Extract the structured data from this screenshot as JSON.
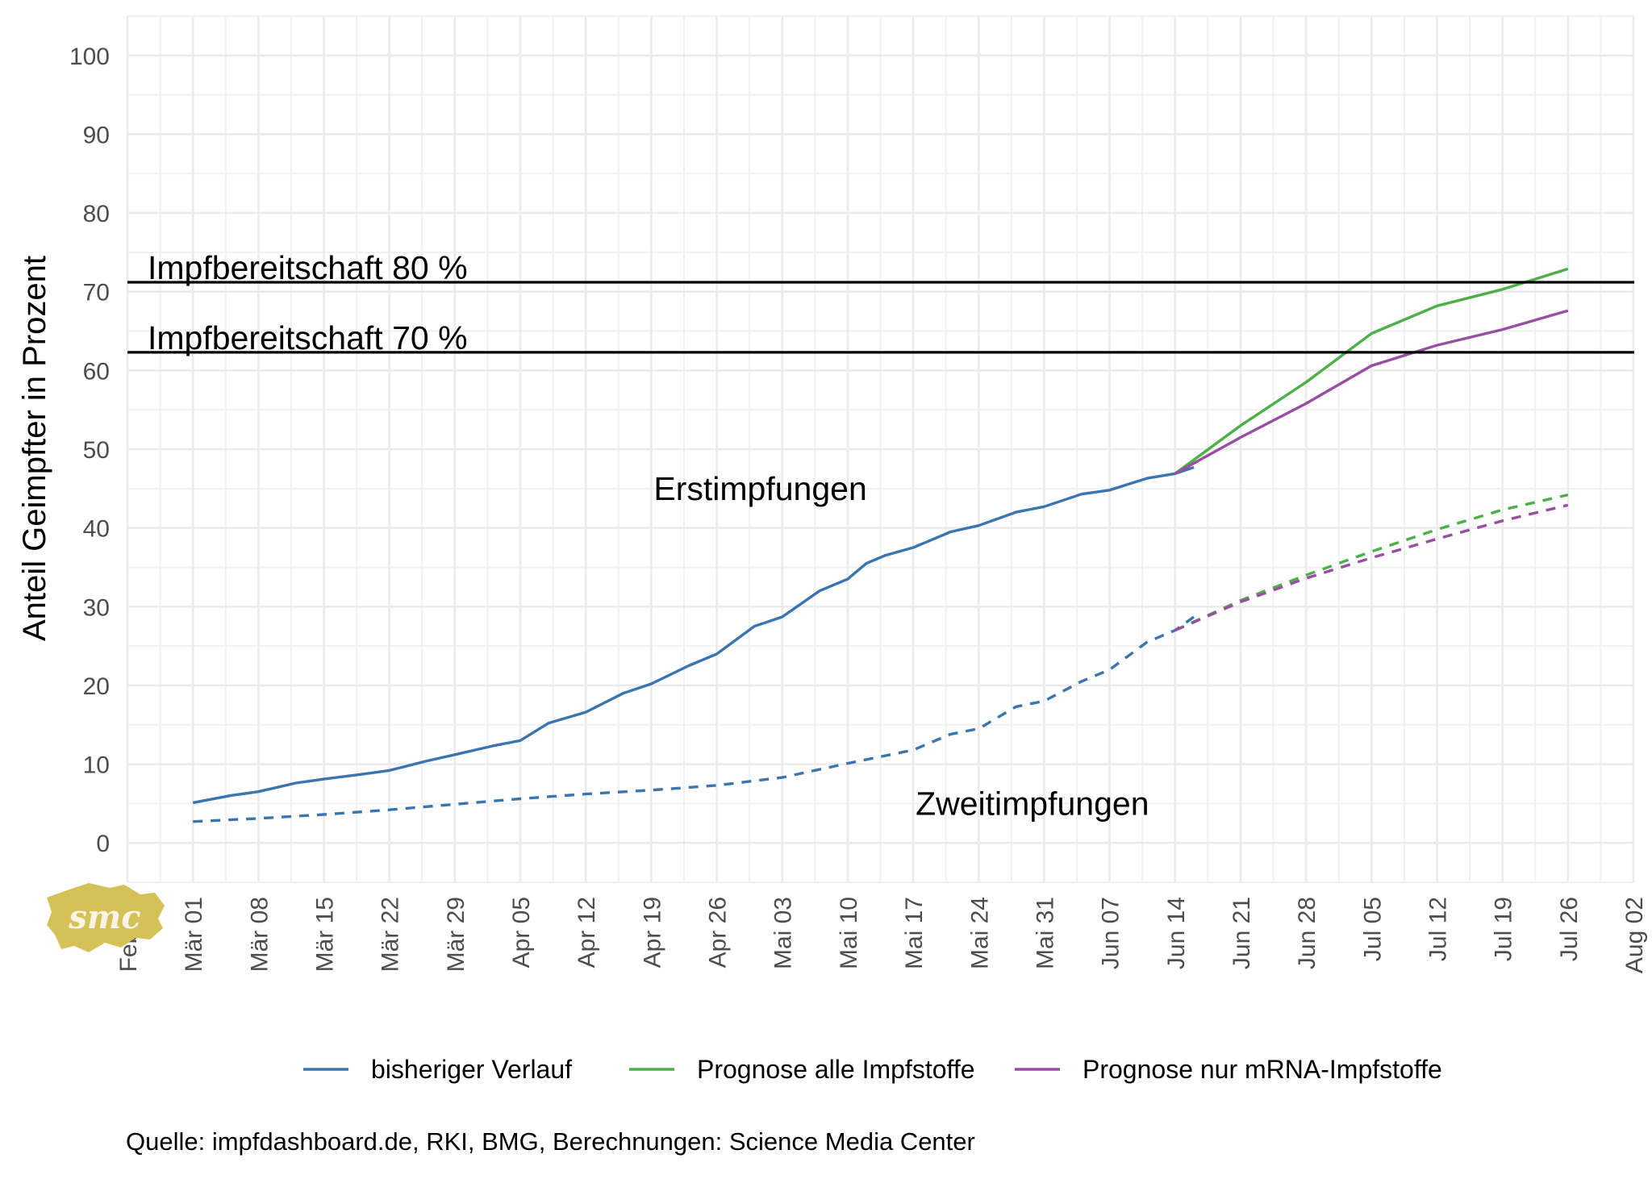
{
  "chart_data": {
    "type": "line",
    "ylabel": "Anteil Geimpfter in Prozent",
    "ylim": [
      -5,
      105
    ],
    "xlim": [
      "2021-02-22",
      "2021-08-02"
    ],
    "y_ticks": [
      0,
      10,
      20,
      30,
      40,
      50,
      60,
      70,
      80,
      90,
      100
    ],
    "x_ticks": [
      {
        "date": "2021-02-22",
        "label": "Feb 22"
      },
      {
        "date": "2021-03-01",
        "label": "Mär 01"
      },
      {
        "date": "2021-03-08",
        "label": "Mär 08"
      },
      {
        "date": "2021-03-15",
        "label": "Mär 15"
      },
      {
        "date": "2021-03-22",
        "label": "Mär 22"
      },
      {
        "date": "2021-03-29",
        "label": "Mär 29"
      },
      {
        "date": "2021-04-05",
        "label": "Apr 05"
      },
      {
        "date": "2021-04-12",
        "label": "Apr 12"
      },
      {
        "date": "2021-04-19",
        "label": "Apr 19"
      },
      {
        "date": "2021-04-26",
        "label": "Apr 26"
      },
      {
        "date": "2021-05-03",
        "label": "Mai 03"
      },
      {
        "date": "2021-05-10",
        "label": "Mai 10"
      },
      {
        "date": "2021-05-17",
        "label": "Mai 17"
      },
      {
        "date": "2021-05-24",
        "label": "Mai 24"
      },
      {
        "date": "2021-05-31",
        "label": "Mai 31"
      },
      {
        "date": "2021-06-07",
        "label": "Jun 07"
      },
      {
        "date": "2021-06-14",
        "label": "Jun 14"
      },
      {
        "date": "2021-06-21",
        "label": "Jun 21"
      },
      {
        "date": "2021-06-28",
        "label": "Jun 28"
      },
      {
        "date": "2021-07-05",
        "label": "Jul 05"
      },
      {
        "date": "2021-07-12",
        "label": "Jul 12"
      },
      {
        "date": "2021-07-19",
        "label": "Jul 19"
      },
      {
        "date": "2021-07-26",
        "label": "Jul 26"
      },
      {
        "date": "2021-08-02",
        "label": "Aug 02"
      }
    ],
    "grid": true,
    "legend_position": "bottom",
    "series": [
      {
        "name": "bisheriger Verlauf",
        "group": "Erstimpfungen",
        "color": "#3a75b0",
        "dash": "solid",
        "points": [
          [
            "2021-03-01",
            5.1
          ],
          [
            "2021-03-05",
            6.0
          ],
          [
            "2021-03-08",
            6.5
          ],
          [
            "2021-03-12",
            7.6
          ],
          [
            "2021-03-15",
            8.1
          ],
          [
            "2021-03-19",
            8.7
          ],
          [
            "2021-03-22",
            9.2
          ],
          [
            "2021-03-26",
            10.4
          ],
          [
            "2021-03-29",
            11.2
          ],
          [
            "2021-04-02",
            12.3
          ],
          [
            "2021-04-05",
            13.0
          ],
          [
            "2021-04-08",
            15.2
          ],
          [
            "2021-04-12",
            16.6
          ],
          [
            "2021-04-16",
            19.0
          ],
          [
            "2021-04-19",
            20.2
          ],
          [
            "2021-04-23",
            22.5
          ],
          [
            "2021-04-26",
            24.0
          ],
          [
            "2021-04-30",
            27.5
          ],
          [
            "2021-05-03",
            28.7
          ],
          [
            "2021-05-07",
            32.0
          ],
          [
            "2021-05-10",
            33.5
          ],
          [
            "2021-05-12",
            35.5
          ],
          [
            "2021-05-14",
            36.5
          ],
          [
            "2021-05-17",
            37.5
          ],
          [
            "2021-05-21",
            39.5
          ],
          [
            "2021-05-24",
            40.3
          ],
          [
            "2021-05-28",
            42.0
          ],
          [
            "2021-05-31",
            42.7
          ],
          [
            "2021-06-04",
            44.3
          ],
          [
            "2021-06-07",
            44.8
          ],
          [
            "2021-06-11",
            46.3
          ],
          [
            "2021-06-14",
            46.9
          ],
          [
            "2021-06-16",
            47.7
          ]
        ]
      },
      {
        "name": "bisheriger Verlauf",
        "group": "Zweitimpfungen",
        "color": "#3a75b0",
        "dash": "dashed",
        "points": [
          [
            "2021-03-01",
            2.7
          ],
          [
            "2021-03-08",
            3.1
          ],
          [
            "2021-03-15",
            3.6
          ],
          [
            "2021-03-22",
            4.2
          ],
          [
            "2021-03-29",
            4.9
          ],
          [
            "2021-04-05",
            5.6
          ],
          [
            "2021-04-12",
            6.2
          ],
          [
            "2021-04-19",
            6.7
          ],
          [
            "2021-04-26",
            7.3
          ],
          [
            "2021-05-03",
            8.3
          ],
          [
            "2021-05-10",
            10.1
          ],
          [
            "2021-05-17",
            11.8
          ],
          [
            "2021-05-21",
            13.8
          ],
          [
            "2021-05-24",
            14.5
          ],
          [
            "2021-05-28",
            17.3
          ],
          [
            "2021-05-31",
            18.0
          ],
          [
            "2021-06-04",
            20.5
          ],
          [
            "2021-06-07",
            22.0
          ],
          [
            "2021-06-11",
            25.5
          ],
          [
            "2021-06-14",
            27.0
          ],
          [
            "2021-06-16",
            28.7
          ]
        ]
      },
      {
        "name": "Prognose alle Impfstoffe",
        "group": "Erstimpfungen",
        "color": "#4daf4a",
        "dash": "solid",
        "points": [
          [
            "2021-06-14",
            46.9
          ],
          [
            "2021-06-21",
            53.0
          ],
          [
            "2021-06-28",
            58.5
          ],
          [
            "2021-07-05",
            64.7
          ],
          [
            "2021-07-12",
            68.2
          ],
          [
            "2021-07-19",
            70.3
          ],
          [
            "2021-07-26",
            72.9
          ]
        ]
      },
      {
        "name": "Prognose nur mRNA-Impfstoffe",
        "group": "Erstimpfungen",
        "color": "#984ea3",
        "dash": "solid",
        "points": [
          [
            "2021-06-14",
            46.9
          ],
          [
            "2021-06-21",
            51.5
          ],
          [
            "2021-06-28",
            55.8
          ],
          [
            "2021-07-05",
            60.6
          ],
          [
            "2021-07-12",
            63.2
          ],
          [
            "2021-07-19",
            65.2
          ],
          [
            "2021-07-26",
            67.6
          ]
        ]
      },
      {
        "name": "Prognose alle Impfstoffe",
        "group": "Zweitimpfungen",
        "color": "#4daf4a",
        "dash": "dashed",
        "points": [
          [
            "2021-06-14",
            27.0
          ],
          [
            "2021-06-21",
            30.8
          ],
          [
            "2021-06-28",
            34.0
          ],
          [
            "2021-07-05",
            37.0
          ],
          [
            "2021-07-12",
            39.8
          ],
          [
            "2021-07-19",
            42.3
          ],
          [
            "2021-07-26",
            44.2
          ]
        ]
      },
      {
        "name": "Prognose nur mRNA-Impfstoffe",
        "group": "Zweitimpfungen",
        "color": "#984ea3",
        "dash": "dashed",
        "points": [
          [
            "2021-06-14",
            27.0
          ],
          [
            "2021-06-21",
            30.6
          ],
          [
            "2021-06-28",
            33.6
          ],
          [
            "2021-07-05",
            36.2
          ],
          [
            "2021-07-12",
            38.6
          ],
          [
            "2021-07-19",
            40.9
          ],
          [
            "2021-07-26",
            42.9
          ]
        ]
      }
    ],
    "reference_lines": [
      {
        "y": 71.2,
        "label": "Impfbereitschaft 80 %"
      },
      {
        "y": 62.3,
        "label": "Impfbereitschaft 70 %"
      }
    ],
    "annotations": [
      {
        "text": "Erstimpfungen",
        "x": "2021-04-19",
        "y": 45
      },
      {
        "text": "Zweitimpfungen",
        "x": "2021-05-17",
        "y": 5
      }
    ],
    "legend": [
      {
        "label": "bisheriger Verlauf",
        "color": "#3a75b0"
      },
      {
        "label": "Prognose alle Impfstoffe",
        "color": "#4daf4a"
      },
      {
        "label": "Prognose nur mRNA-Impfstoffe",
        "color": "#984ea3"
      }
    ]
  },
  "logo_text": "smc",
  "logo_color": "#d4c157",
  "caption": "Quelle: impfdashboard.de, RKI, BMG, Berechnungen: Science Media Center"
}
